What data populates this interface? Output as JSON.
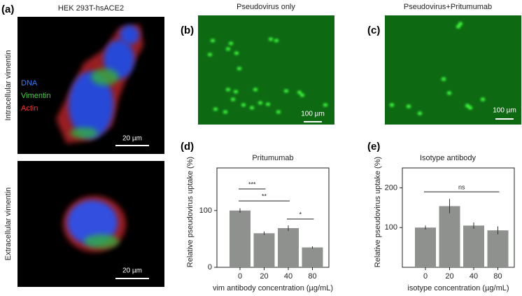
{
  "panel_a": {
    "label": "(a)",
    "title": "HEK 293T-hsACE2",
    "row_labels": [
      "Intracellular vimentin",
      "Extracellular vimentin"
    ],
    "legend": [
      "DNA",
      "Vimentin",
      "Actin"
    ],
    "scale_bars": [
      "20 µm",
      "20 µm"
    ]
  },
  "panel_b": {
    "label": "(b)",
    "title": "Pseudovirus only",
    "scale_bar": "100 µm"
  },
  "panel_c": {
    "label": "(c)",
    "title": "Pseudovirus+Pritumumab",
    "scale_bar": "100 µm"
  },
  "chart_data": [
    {
      "type": "bar",
      "label": "(d)",
      "title": "Pritumumab",
      "xlabel": "vim antibody concentration (µg/mL)",
      "ylabel": "Relative pseudovirus uptake  (%)",
      "categories": [
        "0",
        "20",
        "40",
        "80"
      ],
      "values": [
        100,
        60,
        69,
        35
      ],
      "errors": [
        4,
        3,
        5,
        2
      ],
      "color": "#8e918e",
      "ylim": [
        0,
        175
      ],
      "yticks": [
        0,
        100
      ],
      "annotations": [
        {
          "label": "***"
        },
        {
          "label": "**"
        },
        {
          "label": "*"
        }
      ]
    },
    {
      "type": "bar",
      "label": "(e)",
      "title": "Isotype antibody",
      "xlabel": "isotype concentration (µg/mL)",
      "ylabel": "Relative pseudovirus uptake  (%)",
      "categories": [
        "0",
        "20",
        "40",
        "80"
      ],
      "values": [
        100,
        154,
        105,
        93
      ],
      "errors": [
        5,
        18,
        8,
        10
      ],
      "color": "#8e918e",
      "ylim": [
        0,
        250
      ],
      "yticks": [
        100,
        200
      ],
      "annotations": [
        {
          "label": "ns"
        }
      ]
    }
  ]
}
